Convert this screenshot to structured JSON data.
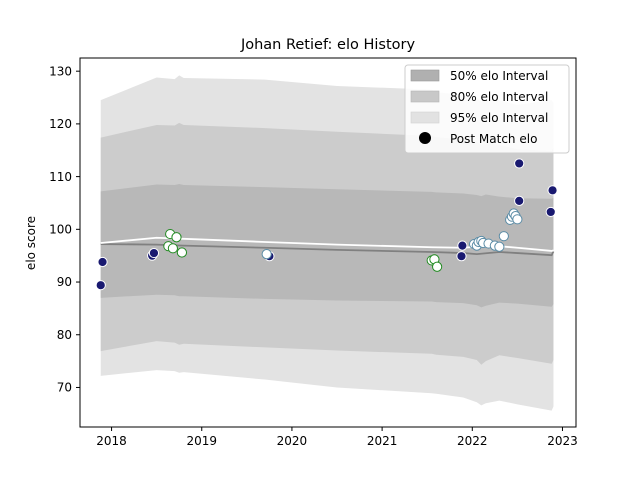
{
  "chart_data": {
    "type": "scatter",
    "title": "Johan Retief: elo History",
    "xlabel": "",
    "ylabel": "elo score",
    "xlim": [
      2017.65,
      2023.15
    ],
    "ylim": [
      62.5,
      132.5
    ],
    "x_ticks": [
      {
        "value": 2018,
        "label": "2018"
      },
      {
        "value": 2019,
        "label": "2019"
      },
      {
        "value": 2020,
        "label": "2020"
      },
      {
        "value": 2021,
        "label": "2021"
      },
      {
        "value": 2022,
        "label": "2022"
      },
      {
        "value": 2023,
        "label": "2023"
      }
    ],
    "y_ticks": [
      {
        "value": 70,
        "label": "70"
      },
      {
        "value": 80,
        "label": "80"
      },
      {
        "value": 90,
        "label": "90"
      },
      {
        "value": 100,
        "label": "100"
      },
      {
        "value": 110,
        "label": "110"
      },
      {
        "value": 120,
        "label": "120"
      },
      {
        "value": 130,
        "label": "130"
      }
    ],
    "grid": false,
    "legend_position": "top-right",
    "legend": [
      {
        "label": "50% elo Interval",
        "kind": "band",
        "color": "#b0b0b0"
      },
      {
        "label": "80% elo Interval",
        "kind": "band",
        "color": "#c8c8c8"
      },
      {
        "label": "95% elo Interval",
        "kind": "band",
        "color": "#e2e2e2"
      },
      {
        "label": "Post Match elo",
        "kind": "marker",
        "color": "#000000"
      }
    ],
    "colors": {
      "band_50": "#b8b8b8",
      "band_80": "#cccccc",
      "band_95": "#e3e3e3",
      "mean_line": "#808080",
      "median_line": "#ffffff",
      "navy": "#191970",
      "green": "#228b22",
      "teal": "#3a7d99"
    },
    "mean_line": {
      "x": [
        2017.88,
        2018.5,
        2018.8,
        2019.7,
        2020.5,
        2021.55,
        2021.9,
        2022.05,
        2022.3,
        2022.5,
        2022.88,
        2022.9
      ],
      "y": [
        97.2,
        97.1,
        96.9,
        96.5,
        96.1,
        95.7,
        95.5,
        95.3,
        95.7,
        95.5,
        95.1,
        95.8
      ]
    },
    "median_line": {
      "x": [
        2017.88,
        2018.5,
        2018.8,
        2019.7,
        2020.5,
        2021.55,
        2021.9,
        2022.05,
        2022.3,
        2022.5,
        2022.88,
        2022.9
      ],
      "y": [
        97.4,
        98.4,
        98.2,
        97.6,
        97.1,
        96.6,
        96.5,
        96.7,
        96.8,
        96.5,
        95.9,
        96.0
      ]
    },
    "band_50": {
      "x": [
        2017.88,
        2018.5,
        2018.7,
        2018.75,
        2018.8,
        2019.7,
        2020.5,
        2021.55,
        2021.6,
        2021.9,
        2022.05,
        2022.1,
        2022.15,
        2022.3,
        2022.5,
        2022.88,
        2022.9
      ],
      "upper": [
        107.2,
        108.5,
        108.4,
        108.6,
        108.4,
        108.0,
        107.6,
        107.1,
        107.0,
        106.8,
        106.5,
        106.3,
        106.6,
        106.2,
        105.9,
        105.8,
        106.0
      ],
      "lower": [
        87.0,
        87.6,
        87.5,
        87.3,
        87.3,
        86.8,
        86.5,
        86.3,
        86.2,
        86.0,
        85.6,
        85.2,
        85.5,
        86.1,
        85.9,
        85.3,
        85.8
      ]
    },
    "band_80": {
      "x": [
        2017.88,
        2018.5,
        2018.7,
        2018.75,
        2018.8,
        2019.7,
        2020.5,
        2021.55,
        2021.6,
        2021.9,
        2022.05,
        2022.1,
        2022.15,
        2022.3,
        2022.5,
        2022.88,
        2022.9
      ],
      "upper": [
        117.4,
        119.8,
        119.7,
        120.2,
        119.8,
        119.2,
        118.5,
        117.7,
        117.5,
        117.0,
        116.6,
        116.0,
        116.5,
        116.0,
        115.2,
        114.8,
        115.5
      ],
      "lower": [
        76.9,
        78.8,
        78.5,
        78.1,
        78.3,
        77.6,
        77.0,
        76.4,
        76.2,
        75.8,
        75.2,
        74.3,
        75.0,
        76.1,
        75.6,
        74.5,
        75.2
      ]
    },
    "band_95": {
      "x": [
        2017.88,
        2018.5,
        2018.7,
        2018.75,
        2018.8,
        2019.7,
        2020.5,
        2021.55,
        2021.6,
        2021.9,
        2022.05,
        2022.1,
        2022.15,
        2022.3,
        2022.5,
        2022.88,
        2022.9
      ],
      "upper": [
        124.5,
        128.8,
        128.5,
        129.2,
        128.7,
        128.4,
        127.2,
        126.5,
        126.0,
        125.5,
        125.0,
        124.2,
        124.8,
        124.5,
        123.6,
        124.5,
        124.0
      ],
      "lower": [
        72.2,
        73.3,
        73.1,
        72.8,
        72.9,
        71.5,
        70.0,
        68.9,
        68.8,
        68.1,
        67.2,
        66.6,
        67.0,
        67.5,
        66.8,
        65.6,
        66.4
      ]
    },
    "series": [
      {
        "marker_color": "#191970",
        "edge_color": "#ffffff",
        "points": [
          {
            "x": 2017.88,
            "y": 89.4
          },
          {
            "x": 2017.9,
            "y": 93.8
          },
          {
            "x": 2018.45,
            "y": 95.0
          },
          {
            "x": 2018.47,
            "y": 95.5
          },
          {
            "x": 2019.75,
            "y": 94.9
          },
          {
            "x": 2021.88,
            "y": 94.9
          },
          {
            "x": 2021.89,
            "y": 96.9
          },
          {
            "x": 2022.52,
            "y": 105.4
          },
          {
            "x": 2022.52,
            "y": 112.5
          },
          {
            "x": 2022.87,
            "y": 103.3
          },
          {
            "x": 2022.89,
            "y": 107.4
          }
        ]
      },
      {
        "marker_color": "#ffffff",
        "edge_color": "#228b22",
        "points": [
          {
            "x": 2018.63,
            "y": 96.8
          },
          {
            "x": 2018.65,
            "y": 99.1
          },
          {
            "x": 2018.68,
            "y": 96.4
          },
          {
            "x": 2018.72,
            "y": 98.5
          },
          {
            "x": 2018.78,
            "y": 95.6
          },
          {
            "x": 2021.55,
            "y": 94.1
          },
          {
            "x": 2021.58,
            "y": 94.3
          },
          {
            "x": 2021.61,
            "y": 92.9
          }
        ]
      },
      {
        "marker_color": "#ffffff",
        "edge_color": "#5b8ca6",
        "points": [
          {
            "x": 2019.72,
            "y": 95.3
          },
          {
            "x": 2022.02,
            "y": 97.2
          },
          {
            "x": 2022.05,
            "y": 96.9
          },
          {
            "x": 2022.07,
            "y": 97.6
          },
          {
            "x": 2022.1,
            "y": 97.8
          },
          {
            "x": 2022.12,
            "y": 97.4
          },
          {
            "x": 2022.18,
            "y": 97.3
          },
          {
            "x": 2022.25,
            "y": 96.9
          },
          {
            "x": 2022.3,
            "y": 96.7
          },
          {
            "x": 2022.35,
            "y": 98.7
          },
          {
            "x": 2022.42,
            "y": 101.8
          },
          {
            "x": 2022.44,
            "y": 102.4
          },
          {
            "x": 2022.46,
            "y": 103.0
          },
          {
            "x": 2022.48,
            "y": 102.5
          },
          {
            "x": 2022.5,
            "y": 101.9
          }
        ]
      }
    ]
  }
}
